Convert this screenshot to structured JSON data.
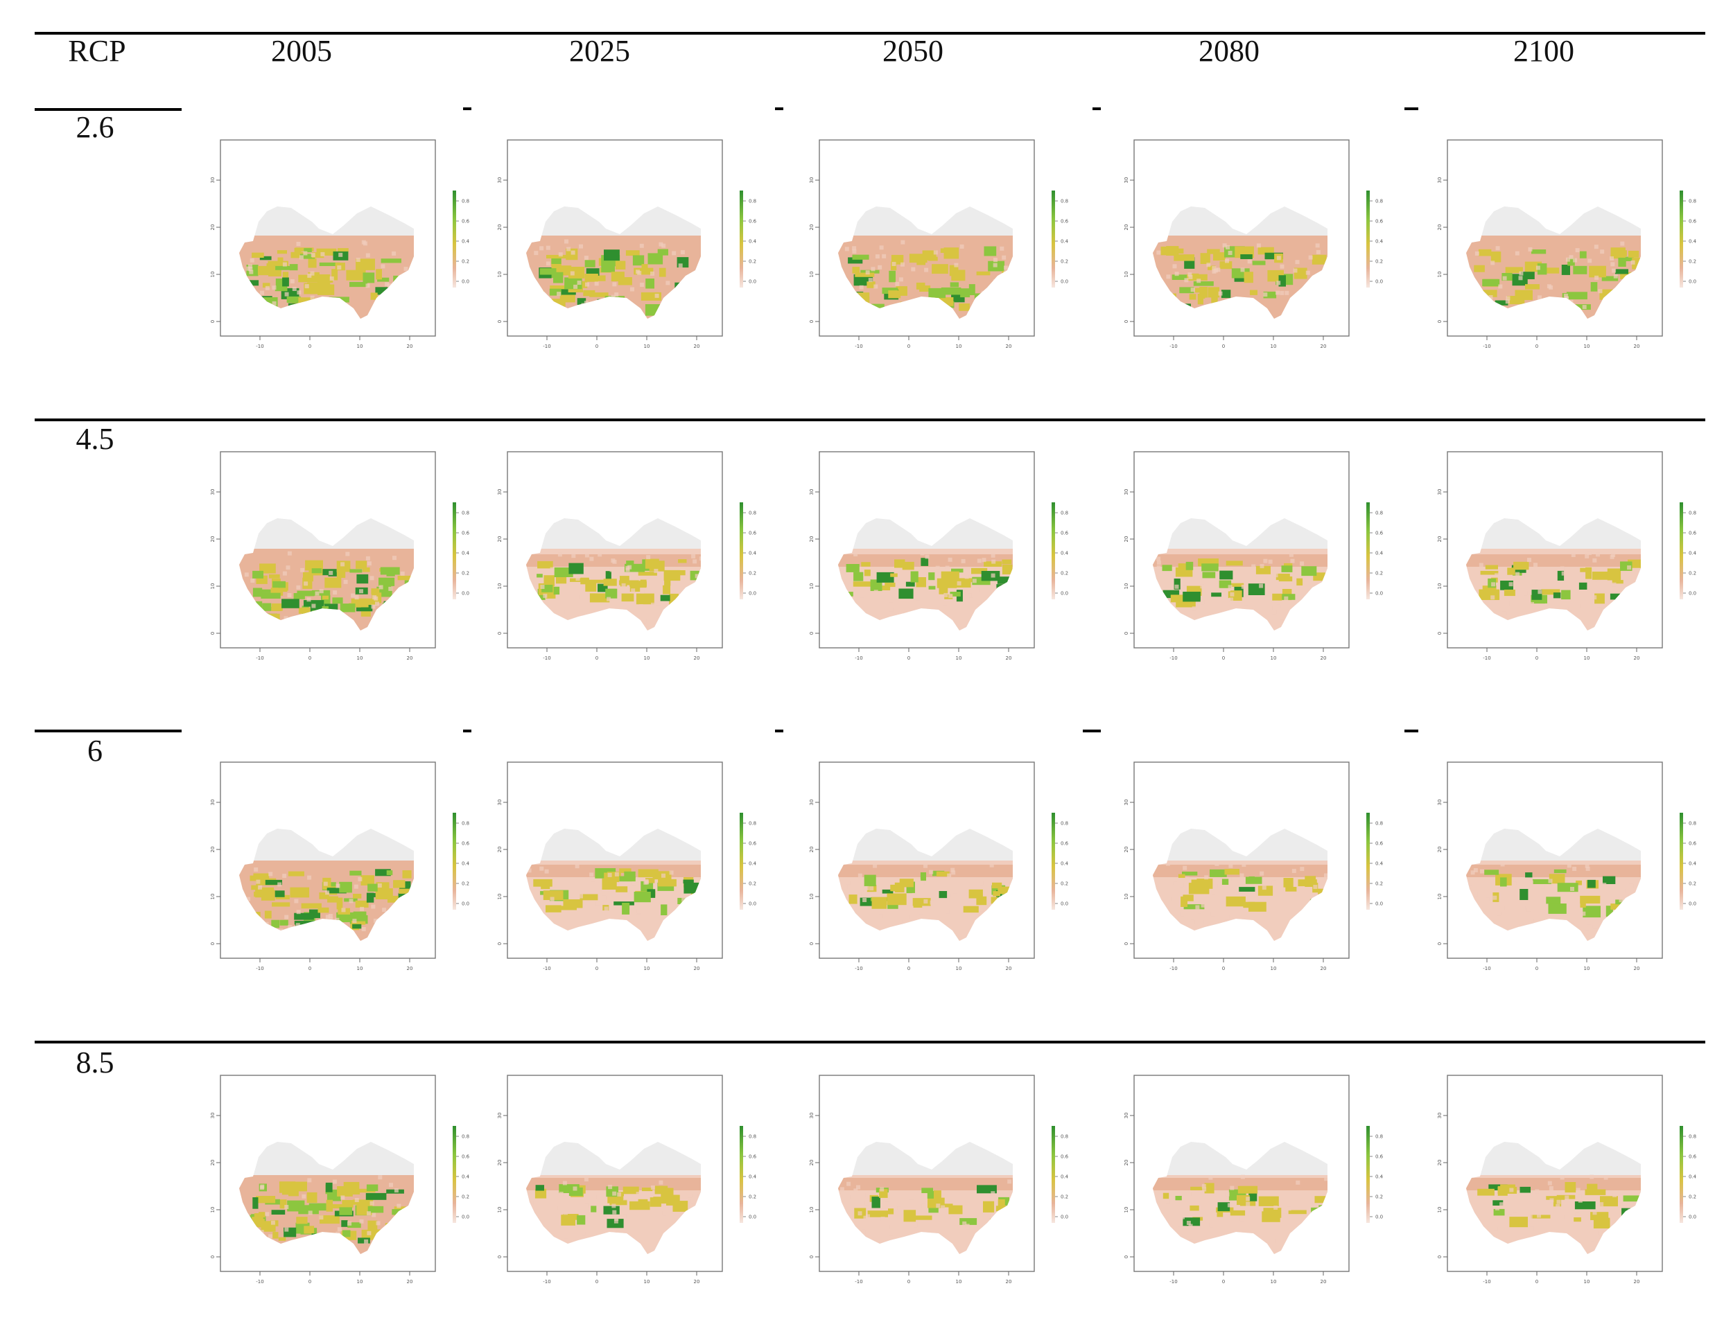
{
  "table": {
    "header": {
      "rcp_label": "RCP",
      "years": [
        "2005",
        "2025",
        "2050",
        "2080",
        "2100"
      ]
    },
    "rows": [
      {
        "rcp": "2.6"
      },
      {
        "rcp": "4.5"
      },
      {
        "rcp": "6"
      },
      {
        "rcp": "8.5"
      }
    ]
  },
  "map_panel": {
    "x_ticks": [
      "-10",
      "0",
      "10",
      "20"
    ],
    "y_ticks": [
      "30",
      "20",
      "10",
      "0"
    ],
    "legend_ticks": [
      "0.8",
      "0.6",
      "0.4",
      "0.2",
      "0.0"
    ],
    "colors": {
      "background_land": "#ececec",
      "low": "#e8b49a",
      "pale": "#f1cdbd",
      "mid": "#d8c440",
      "high": "#8cc63f",
      "top": "#2f8f2f"
    }
  }
}
